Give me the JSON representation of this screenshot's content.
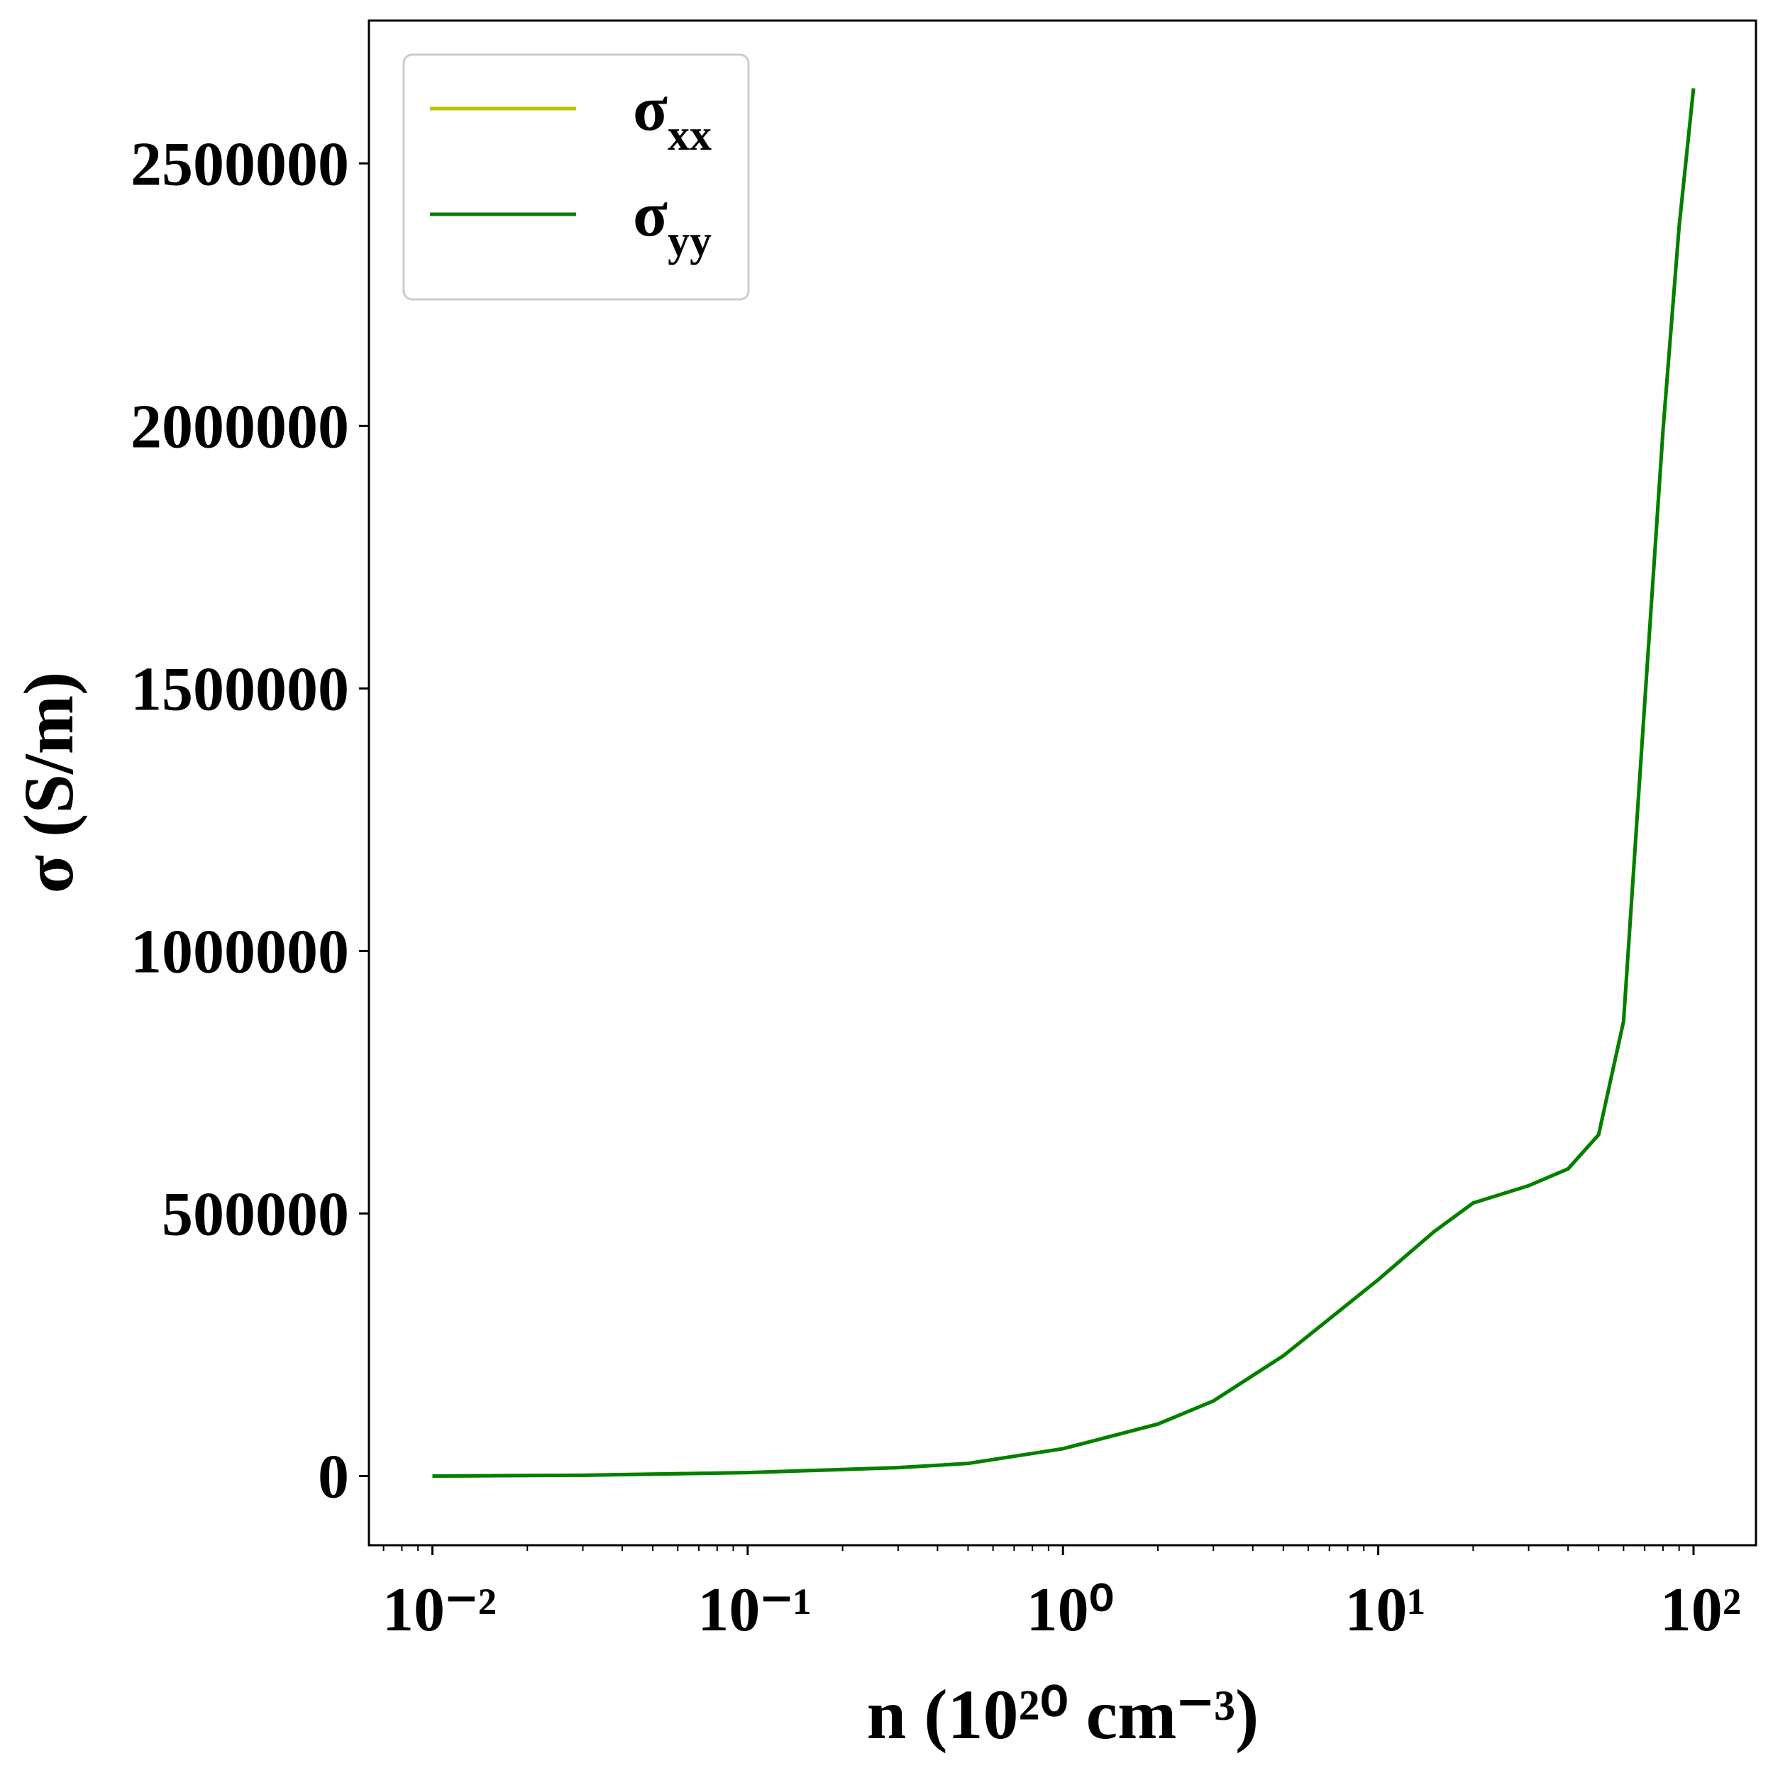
{
  "chart_data": {
    "type": "line",
    "xlabel": "n (10²⁰ cm⁻³)",
    "ylabel": "σ (S/m)",
    "x": [
      0.01,
      0.03,
      0.1,
      0.3,
      0.5,
      1,
      2,
      3,
      5,
      10,
      15,
      20,
      30,
      40,
      50,
      60,
      70,
      80,
      90,
      100
    ],
    "series": [
      {
        "name": "σxx",
        "color": "#bfbf00",
        "values": [
          0,
          1500,
          6500,
          16000,
          24000,
          52000,
          99000,
          143000,
          229000,
          374000,
          465000,
          520000,
          553000,
          585000,
          650000,
          866000,
          1471000,
          1990000,
          2379000,
          2643000
        ]
      },
      {
        "name": "σyy",
        "color": "#008000",
        "values": [
          0,
          1500,
          6500,
          16000,
          24000,
          52000,
          99000,
          143000,
          229000,
          374000,
          465000,
          520000,
          553000,
          585000,
          650000,
          866000,
          1471000,
          1990000,
          2379000,
          2643000
        ]
      }
    ],
    "xscale": "log",
    "xlim": [
      0.00629,
      157.8
    ],
    "ylim": [
      -131800,
      2772000
    ],
    "xticks": [
      {
        "value": 0.01,
        "label": "10⁻²"
      },
      {
        "value": 0.1,
        "label": "10⁻¹"
      },
      {
        "value": 1,
        "label": "10⁰"
      },
      {
        "value": 10,
        "label": "10¹"
      },
      {
        "value": 100,
        "label": "10²"
      }
    ],
    "yticks": [
      0,
      500000,
      1000000,
      1500000,
      2000000,
      2500000
    ],
    "legend": "upper left",
    "grid": false
  }
}
